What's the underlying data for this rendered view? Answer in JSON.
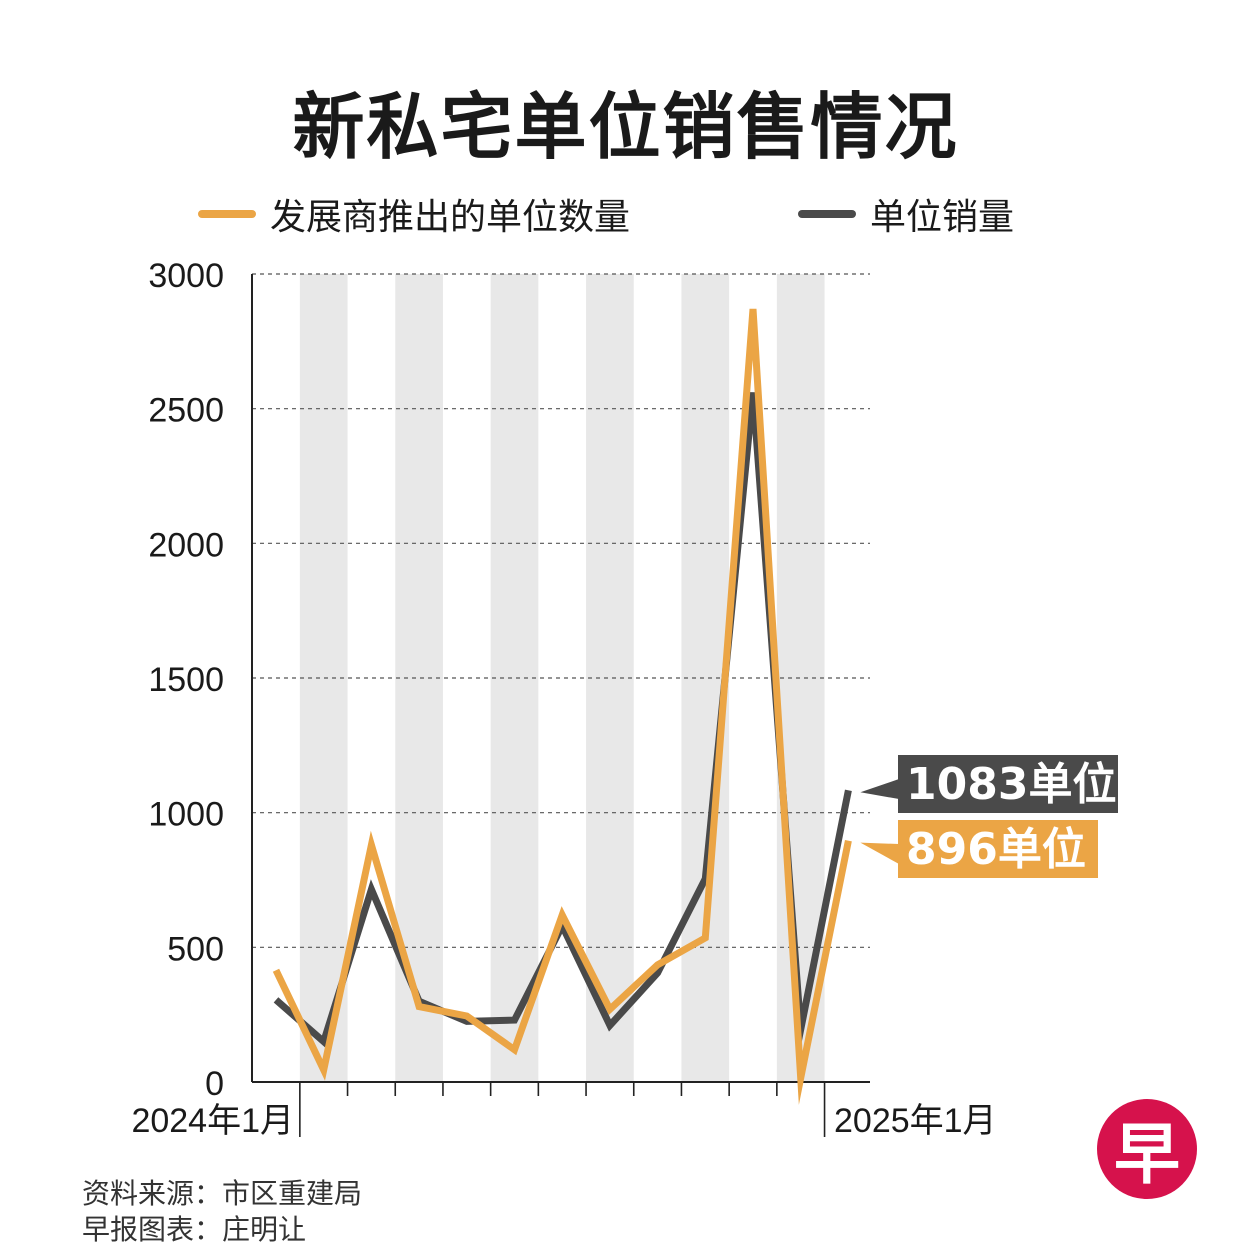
{
  "chart_data": {
    "type": "line",
    "title": "新私宅单位销售情况",
    "x_start_label": "2024年1月",
    "x_end_label": "2025年1月",
    "ylim": [
      0,
      3000
    ],
    "yticks": [
      "0",
      "500",
      "1000",
      "1500",
      "2000",
      "2500",
      "3000"
    ],
    "grid": "horizontal dashed",
    "legend_position": "top",
    "series": [
      {
        "name": "发展商推出的单位数量",
        "color": "#eba545",
        "values": [
          415,
          45,
          880,
          280,
          245,
          120,
          620,
          270,
          435,
          535,
          2870,
          15,
          896
        ],
        "end_label": "896单位"
      },
      {
        "name": "单位销量",
        "color": "#4a4a4a",
        "values": [
          305,
          150,
          715,
          300,
          225,
          230,
          580,
          210,
          405,
          755,
          2560,
          195,
          1083
        ],
        "end_label": "1083单位"
      }
    ]
  },
  "source": "资料来源：市区重建局",
  "credit": "早报图表：庄明让",
  "logo_text": "早"
}
